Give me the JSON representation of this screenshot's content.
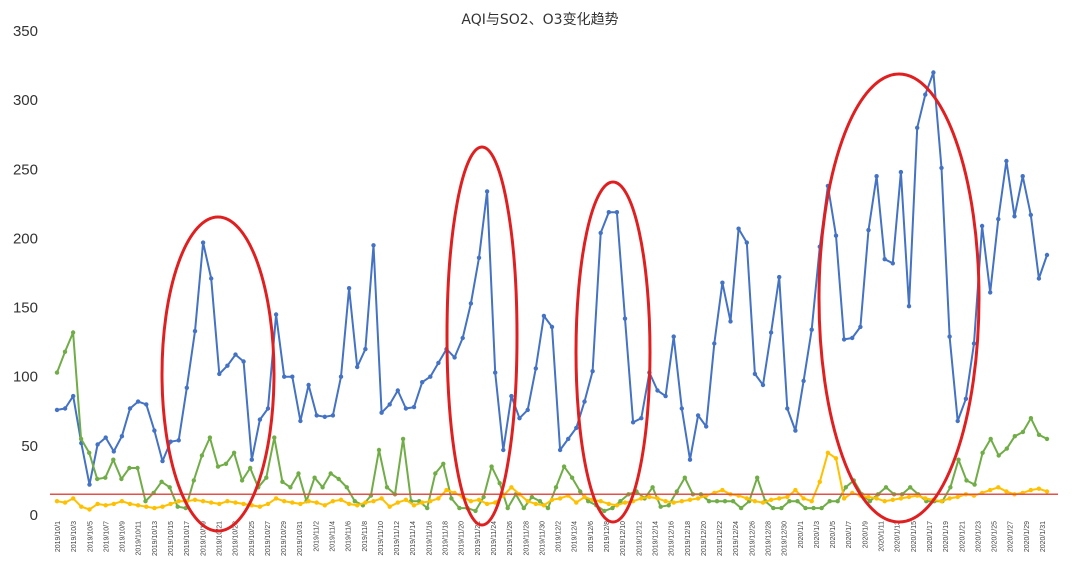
{
  "chart_data": {
    "type": "line",
    "title": "AQI与SO2、O3变化趋势",
    "xlabel": "",
    "ylabel": "",
    "ylim": [
      0,
      350
    ],
    "yticks": [
      0,
      50,
      100,
      150,
      200,
      250,
      300,
      350
    ],
    "grid": false,
    "legend": "none",
    "x_tick_labels": [
      "2019/10/1",
      "2019/10/3",
      "2019/10/5",
      "2019/10/7",
      "2019/10/9",
      "2019/10/11",
      "2019/10/13",
      "2019/10/15",
      "2019/10/17",
      "2019/10/19",
      "2019/10/21",
      "2019/10/23",
      "2019/10/25",
      "2019/10/27",
      "2019/10/29",
      "2019/10/31",
      "2019/11/2",
      "2019/11/4",
      "2019/11/6",
      "2019/11/8",
      "2019/11/10",
      "2019/11/12",
      "2019/11/14",
      "2019/11/16",
      "2019/11/18",
      "2019/11/20",
      "2019/11/22",
      "2019/11/24",
      "2019/11/26",
      "2019/11/28",
      "2019/11/30",
      "2019/12/2",
      "2019/12/4",
      "2019/12/6",
      "2019/12/8",
      "2019/12/10",
      "2019/12/12",
      "2019/12/14",
      "2019/12/16",
      "2019/12/18",
      "2019/12/20",
      "2019/12/22",
      "2019/12/24",
      "2019/12/26",
      "2019/12/28",
      "2019/12/30",
      "2020/1/1",
      "2020/1/3",
      "2020/1/5",
      "2020/1/7",
      "2020/1/9",
      "2020/1/11",
      "2020/1/13",
      "2020/1/15",
      "2020/1/17",
      "2020/1/19",
      "2020/1/21",
      "2020/1/23",
      "2020/1/25",
      "2020/1/27",
      "2020/1/29",
      "2020/1/31"
    ],
    "series": [
      {
        "color": "#4472C4",
        "values": [
          76,
          77,
          86,
          52,
          22,
          51,
          56,
          46,
          57,
          77,
          82,
          80,
          61,
          39,
          53,
          54,
          92,
          133,
          197,
          171,
          102,
          108,
          116,
          111,
          40,
          69,
          77,
          145,
          100,
          100,
          68,
          94,
          72,
          71,
          72,
          100,
          164,
          107,
          120,
          195,
          74,
          80,
          90,
          77,
          78,
          96,
          100,
          110,
          120,
          114,
          128,
          153,
          186,
          234,
          103,
          47,
          86,
          70,
          76,
          106,
          144,
          136,
          47,
          55,
          63,
          82,
          104,
          204,
          219,
          219,
          142,
          67,
          70,
          103,
          90,
          86,
          129,
          77,
          40,
          72,
          64,
          124,
          168,
          140,
          207,
          197,
          102,
          94,
          132,
          172,
          77,
          61,
          97,
          134,
          194,
          238,
          202,
          127,
          128,
          136,
          206,
          245,
          185,
          182,
          248,
          151,
          280,
          304,
          320,
          251,
          129,
          68,
          84,
          124,
          209,
          161,
          214,
          256,
          216,
          245,
          217,
          171,
          188
        ]
      },
      {
        "color": "#70AD47",
        "values": [
          103,
          118,
          132,
          55,
          45,
          26,
          27,
          40,
          26,
          34,
          34,
          10,
          16,
          24,
          20,
          6,
          5,
          25,
          43,
          56,
          35,
          37,
          45,
          25,
          34,
          20,
          27,
          56,
          24,
          20,
          30,
          10,
          27,
          20,
          30,
          26,
          20,
          10,
          7,
          14,
          47,
          20,
          15,
          55,
          10,
          10,
          5,
          30,
          37,
          12,
          5,
          5,
          3,
          13,
          35,
          23,
          5,
          15,
          5,
          13,
          10,
          5,
          20,
          35,
          27,
          17,
          10,
          7,
          3,
          5,
          10,
          15,
          17,
          12,
          20,
          6,
          7,
          17,
          27,
          15,
          15,
          10,
          10,
          10,
          10,
          5,
          10,
          27,
          10,
          5,
          5,
          10,
          10,
          5,
          5,
          5,
          10,
          10,
          20,
          25,
          15,
          10,
          15,
          20,
          15,
          15,
          20,
          15,
          10,
          10,
          10,
          20,
          40,
          25,
          22,
          45,
          55,
          43,
          48,
          57,
          60,
          70,
          58,
          55
        ]
      },
      {
        "color": "#FFC000",
        "values": [
          10,
          9,
          12,
          6,
          4,
          8,
          7,
          8,
          10,
          8,
          7,
          6,
          5,
          6,
          8,
          10,
          10,
          11,
          10,
          9,
          8,
          10,
          9,
          8,
          7,
          6,
          8,
          12,
          10,
          9,
          8,
          10,
          9,
          7,
          10,
          11,
          8,
          7,
          9,
          10,
          12,
          6,
          9,
          11,
          7,
          9,
          10,
          12,
          18,
          16,
          13,
          10,
          11,
          8,
          9,
          14,
          20,
          15,
          10,
          8,
          7,
          11,
          12,
          14,
          9,
          13,
          11,
          10,
          8,
          7,
          9,
          10,
          12,
          13,
          12,
          10,
          9,
          10,
          11,
          12,
          14,
          16,
          18,
          15,
          14,
          12,
          10,
          9,
          11,
          12,
          13,
          18,
          12,
          10,
          24,
          45,
          41,
          12,
          16,
          14,
          13,
          12,
          10,
          11,
          12,
          13,
          14,
          12,
          11,
          10,
          12,
          13,
          15,
          14,
          16,
          18,
          20,
          17,
          15,
          16,
          18,
          19,
          17
        ]
      },
      {
        "color": "#E3524A",
        "values": [
          15,
          15
        ]
      }
    ],
    "colors": {
      "aqi": "#4472C4",
      "o3": "#70AD47",
      "so2": "#FFC000",
      "reference": "#E3524A",
      "ellipse": "#E02020"
    }
  }
}
